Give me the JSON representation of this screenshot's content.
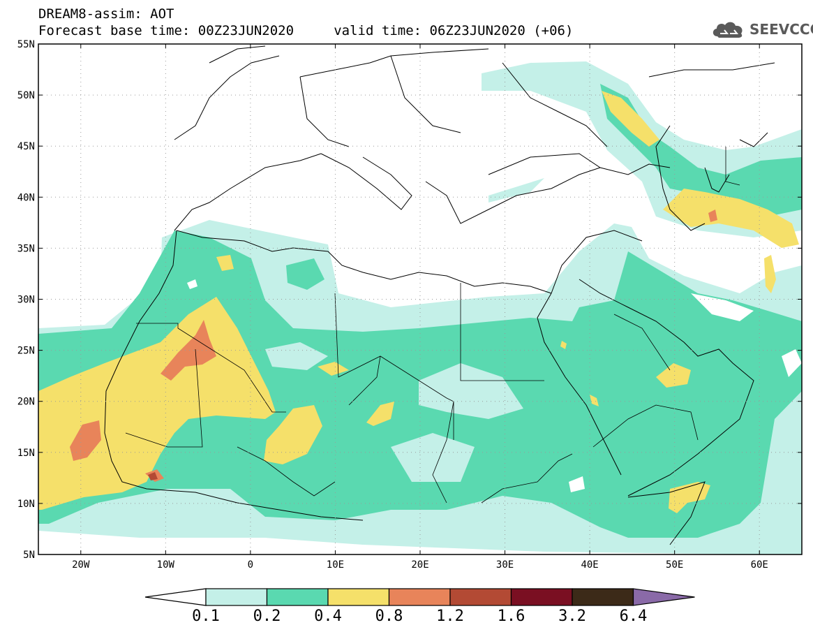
{
  "header": {
    "line1": "DREAM8-assim: AOT",
    "line2": "Forecast base time: 00Z23JUN2020     valid time: 06Z23JUN2020 (+06)"
  },
  "logo": {
    "text": "SEEVCCC",
    "icon": "cloud-icon",
    "color": "#5a5a5a"
  },
  "map": {
    "lon_range": [
      -25,
      65
    ],
    "lat_range": [
      5,
      55
    ],
    "lon_ticks": [
      {
        "lon": -20,
        "label": "20W"
      },
      {
        "lon": -10,
        "label": "10W"
      },
      {
        "lon": 0,
        "label": "0"
      },
      {
        "lon": 10,
        "label": "10E"
      },
      {
        "lon": 20,
        "label": "20E"
      },
      {
        "lon": 30,
        "label": "30E"
      },
      {
        "lon": 40,
        "label": "40E"
      },
      {
        "lon": 50,
        "label": "50E"
      },
      {
        "lon": 60,
        "label": "60E"
      }
    ],
    "lat_ticks": [
      {
        "lat": 55,
        "label": "55N"
      },
      {
        "lat": 50,
        "label": "50N"
      },
      {
        "lat": 45,
        "label": "45N"
      },
      {
        "lat": 40,
        "label": "40N"
      },
      {
        "lat": 35,
        "label": "35N"
      },
      {
        "lat": 30,
        "label": "30N"
      },
      {
        "lat": 25,
        "label": "25N"
      },
      {
        "lat": 20,
        "label": "20N"
      },
      {
        "lat": 15,
        "label": "15N"
      },
      {
        "lat": 10,
        "label": "10N"
      },
      {
        "lat": 5,
        "label": "5N"
      }
    ]
  },
  "colorbar": {
    "labels": [
      "0.1",
      "0.2",
      "0.4",
      "0.8",
      "1.2",
      "1.6",
      "3.2",
      "6.4"
    ],
    "colors": [
      "#c4f0e8",
      "#5ad9b0",
      "#f5e06a",
      "#e8845a",
      "#b34a34",
      "#7a0f22",
      "#3c2a18",
      "#8a6aa8"
    ],
    "under_color": "#ffffff"
  }
}
